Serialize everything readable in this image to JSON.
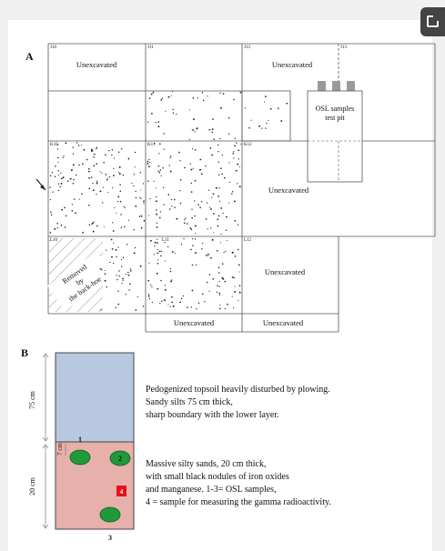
{
  "panel_a": {
    "label": "A",
    "grid_ids": {
      "j10": "J10",
      "j11": "J11",
      "j12": "J12",
      "j13": "J13",
      "k10": "K10",
      "k11": "K11",
      "k12": "K12",
      "l10": "L10",
      "l11": "L11",
      "l12": "L12"
    },
    "areas": {
      "j10": "Unexcavated",
      "j12": "Unexcavated",
      "k12": "Unexcavated",
      "l12": "Unexcavated",
      "below_l11": "Unexcavated",
      "below_l12": "Unexcavated"
    },
    "osl_pit_lines": [
      "OSL samples",
      "test pit"
    ],
    "removed_lines": [
      "Removed",
      "by",
      "the back-hoe"
    ]
  },
  "panel_b": {
    "label": "B",
    "depth_upper": "75 cm",
    "depth_lower": "20 cm",
    "depth_small": "7 cm",
    "sample_numbers": {
      "s1": "1",
      "s2": "2",
      "s3": "3",
      "s4": "4"
    },
    "upper_description": [
      "Pedogenized topsoil heavily disturbed by plowing.",
      "Sandy silts 75 cm thick,",
      "sharp boundary with the lower layer."
    ],
    "lower_description": [
      "Massive silty sands, 20 cm thick,",
      "with small black  nodules of iron oxides",
      "and manganese. 1-3= OSL samples,",
      "4 = sample for measuring the gamma radioactivity."
    ]
  },
  "colors": {
    "upper_layer": "#b8c8e0",
    "lower_layer": "#e7b0aa",
    "osl_sample": "#1f9a3a",
    "gamma_sample": "#e8101a",
    "sample_tube": "#9a9a9a"
  }
}
